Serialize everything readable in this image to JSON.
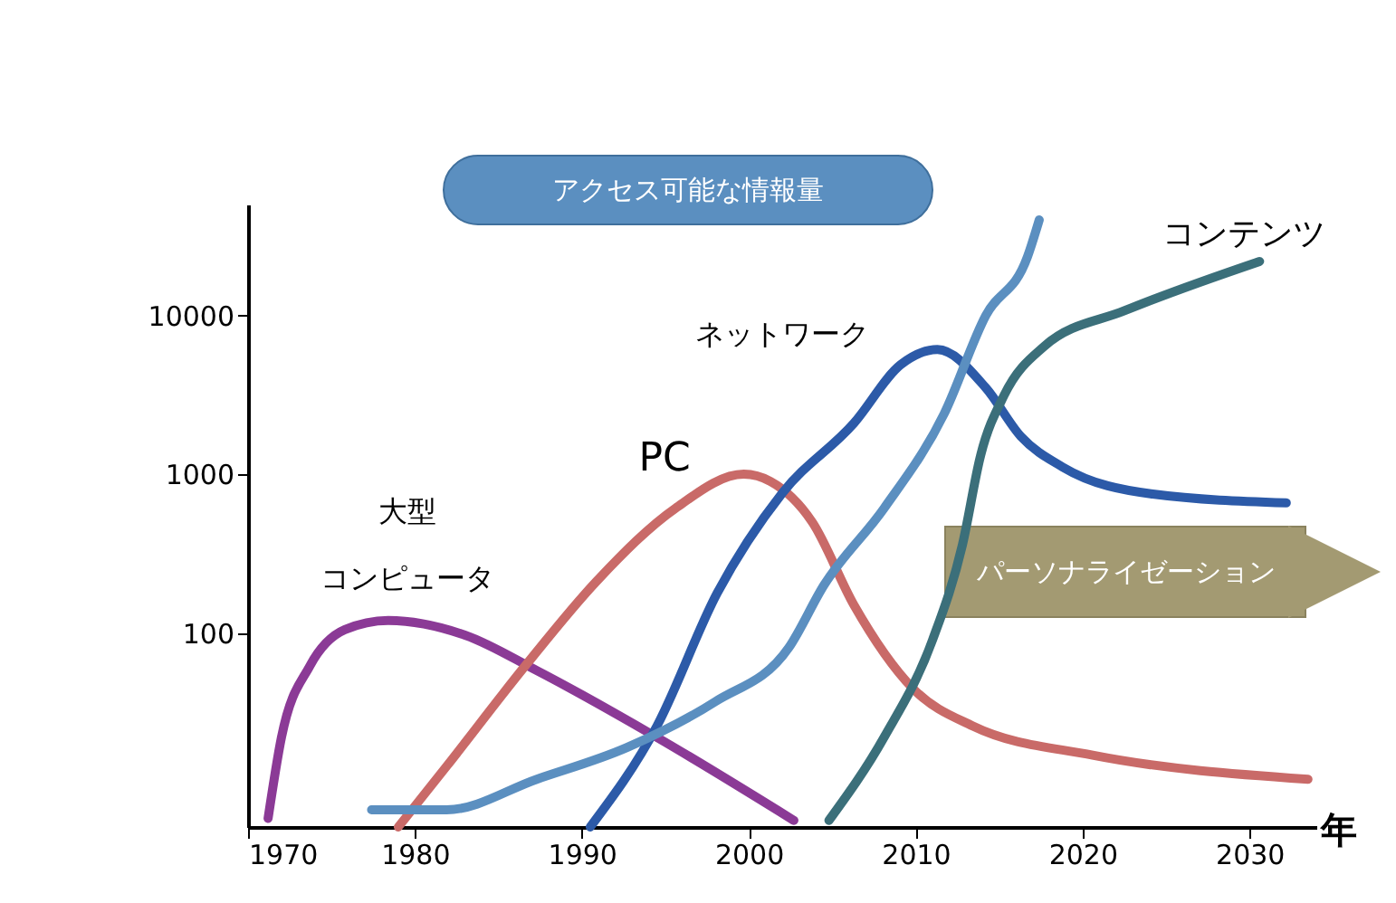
{
  "chart_data": {
    "type": "line",
    "xlabel": "年",
    "log": true,
    "grid": false,
    "marker": "none",
    "line_style": "solid",
    "xlim": [
      1970,
      2034
    ],
    "xticks": [
      1970,
      1980,
      1990,
      2000,
      2010,
      2020,
      2030
    ],
    "ylim": [
      6,
      50000
    ],
    "yticks": [
      100,
      1000,
      10000
    ],
    "annotations": [
      "パーソナライゼーション"
    ],
    "series": [
      {
        "name": "大型コンピュータ",
        "color": "#8b3a96",
        "x": [
          1971.2,
          1972.0,
          1973.7,
          1975.8,
          1978.4,
          1983.0,
          1987.3,
          1994.5,
          2002.7
        ],
        "values": [
          6.8,
          22,
          62,
          105,
          120,
          97,
          58,
          22,
          6.6
        ]
      },
      {
        "name": "PC",
        "color": "#c96a68",
        "x": [
          1979.0,
          1981.9,
          1986.6,
          1990.9,
          1995.6,
          1999.7,
          2001.3,
          2003.8,
          2006.3,
          2009.9,
          2013.4,
          2020.6,
          2033.5
        ],
        "values": [
          6,
          14.5,
          62,
          213,
          610,
          1000,
          900,
          500,
          150,
          44,
          26,
          17,
          12
        ]
      },
      {
        "name": "ネットワーク",
        "color": "#2c5aa8",
        "x": [
          1990.5,
          1994.5,
          1998.1,
          2002.0,
          2006.3,
          2009.1,
          2011.3,
          2014.2,
          2016.3,
          2018.8,
          2024.2,
          2032.2
        ],
        "values": [
          6,
          26,
          178,
          760,
          2100,
          4900,
          6100,
          3500,
          1730,
          1110,
          750,
          660
        ]
      },
      {
        "name": "コンテンツ",
        "color": "#3b6f7a",
        "x": [
          2004.8,
          2008.1,
          2011.0,
          2012.8,
          2013.9,
          2015.3,
          2017.7,
          2022.5,
          2030.6
        ],
        "values": [
          6.6,
          22,
          90,
          360,
          1330,
          3150,
          6400,
          10700,
          21900
        ]
      },
      {
        "name": "アクセス可能な情報量",
        "color": "#5b8fc0",
        "x": [
          1977.4,
          1981.9,
          1987.3,
          1992.7,
          1998.0,
          2002.4,
          2004.5,
          2008.1,
          2011.7,
          2014.2,
          2016.7,
          2017.4
        ],
        "values": [
          7.7,
          7.7,
          12,
          19,
          37,
          81,
          200,
          610,
          2400,
          10000,
          23500,
          40000
        ]
      }
    ]
  }
}
